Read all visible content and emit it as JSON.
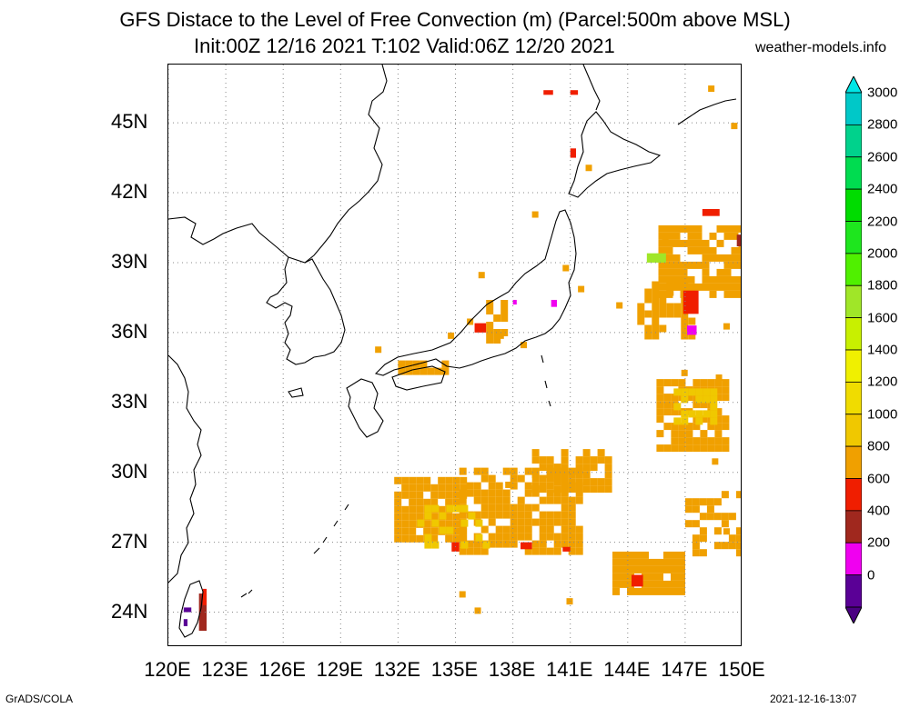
{
  "header": {
    "title_line1": "GFS Distace to the Level of Free Convection (m) (Parcel:500m above MSL)",
    "title_line2": "Init:00Z 12/16 2021 T:102 Valid:06Z 12/20 2021",
    "site": "weather-models.info"
  },
  "map": {
    "lon_range": [
      120,
      150
    ],
    "lat_range": [
      22.5,
      47.5
    ],
    "lat_labels": [
      "45N",
      "42N",
      "39N",
      "36N",
      "33N",
      "30N",
      "27N",
      "24N"
    ],
    "lat_values": [
      45,
      42,
      39,
      36,
      33,
      30,
      27,
      24
    ],
    "lon_labels": [
      "120E",
      "123E",
      "126E",
      "129E",
      "132E",
      "135E",
      "138E",
      "141E",
      "144E",
      "147E",
      "150E"
    ],
    "lon_values": [
      120,
      123,
      126,
      129,
      132,
      135,
      138,
      141,
      144,
      147,
      150
    ],
    "gridlines": "dotted"
  },
  "colorbar": {
    "labels": [
      "3000",
      "2800",
      "2600",
      "2400",
      "2200",
      "2000",
      "1800",
      "1600",
      "1400",
      "1200",
      "1000",
      "800",
      "600",
      "400",
      "200",
      "0"
    ],
    "colors": [
      "#00c8c8",
      "#00d28c",
      "#00dc50",
      "#00dc00",
      "#1ee61e",
      "#50f000",
      "#a0e628",
      "#c8f000",
      "#f0f000",
      "#f0dc00",
      "#f0c800",
      "#f0a000",
      "#f01e00",
      "#a0281e",
      "#f000f0",
      "#5a0096"
    ],
    "top_arrow_color": "#00e6e6",
    "bottom_arrow_color": "#4b0082"
  },
  "footer": {
    "left": "GrADS/COLA",
    "right": "2021-12-16-13:07"
  }
}
